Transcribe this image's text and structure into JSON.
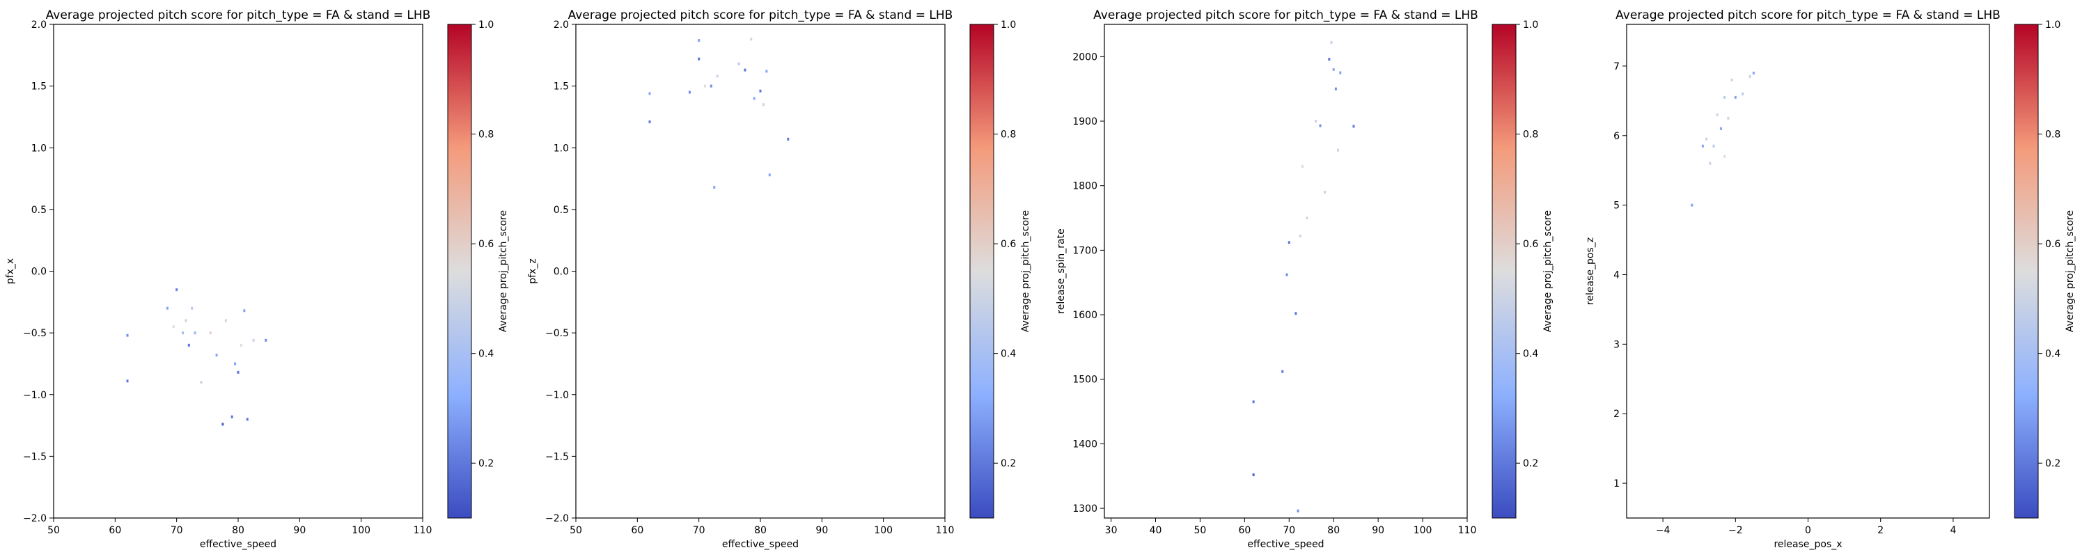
{
  "chart_data": [
    {
      "type": "heatmap",
      "title": "Average projected pitch score for pitch_type = FA & stand = LHB",
      "xlabel": "effective_speed",
      "ylabel": "pfx_x",
      "xlim": [
        50,
        110
      ],
      "ylim": [
        -2.0,
        2.0
      ],
      "xticks": [
        50,
        60,
        70,
        80,
        90,
        100,
        110
      ],
      "yticks": [
        -2.0,
        -1.5,
        -1.0,
        -0.5,
        0.0,
        0.5,
        1.0,
        1.5,
        2.0
      ],
      "xtick_labels": [
        "50",
        "60",
        "70",
        "80",
        "90",
        "100",
        "110"
      ],
      "ytick_labels": [
        "−2.0",
        "−1.5",
        "−1.0",
        "−0.5",
        "0.0",
        "0.5",
        "1.0",
        "1.5",
        "2.0"
      ],
      "colorbar": {
        "label": "Average proj_pitch_score",
        "colormap": "coolwarm",
        "range": [
          0.1,
          1.0
        ],
        "ticks": [
          0.2,
          0.4,
          0.6,
          0.8,
          1.0
        ],
        "tick_labels": [
          "0.2",
          "0.4",
          "0.6",
          "0.8",
          "1.0"
        ]
      },
      "grid": false,
      "points": [
        {
          "x": 62.0,
          "y": -0.52,
          "v": 0.25
        },
        {
          "x": 62.0,
          "y": -0.89,
          "v": 0.2
        },
        {
          "x": 68.5,
          "y": -0.3,
          "v": 0.3
        },
        {
          "x": 69.5,
          "y": -0.45,
          "v": 0.55
        },
        {
          "x": 70.0,
          "y": -0.15,
          "v": 0.22
        },
        {
          "x": 71.0,
          "y": -0.5,
          "v": 0.4
        },
        {
          "x": 71.5,
          "y": -0.4,
          "v": 0.5
        },
        {
          "x": 72.0,
          "y": -0.6,
          "v": 0.2
        },
        {
          "x": 72.5,
          "y": -0.3,
          "v": 0.45
        },
        {
          "x": 73.0,
          "y": -0.5,
          "v": 0.35
        },
        {
          "x": 74.0,
          "y": -0.9,
          "v": 0.5
        },
        {
          "x": 75.5,
          "y": -0.5,
          "v": 0.6
        },
        {
          "x": 76.5,
          "y": -0.68,
          "v": 0.3
        },
        {
          "x": 77.5,
          "y": -1.24,
          "v": 0.15
        },
        {
          "x": 78.0,
          "y": -0.4,
          "v": 0.5
        },
        {
          "x": 79.0,
          "y": -1.18,
          "v": 0.2
        },
        {
          "x": 79.5,
          "y": -0.75,
          "v": 0.3
        },
        {
          "x": 80.0,
          "y": -0.82,
          "v": 0.2
        },
        {
          "x": 80.5,
          "y": -0.6,
          "v": 0.55
        },
        {
          "x": 81.0,
          "y": -0.32,
          "v": 0.3
        },
        {
          "x": 81.5,
          "y": -1.2,
          "v": 0.2
        },
        {
          "x": 82.5,
          "y": -0.56,
          "v": 0.5
        },
        {
          "x": 84.5,
          "y": -0.56,
          "v": 0.25
        }
      ]
    },
    {
      "type": "heatmap",
      "title": "Average projected pitch score for pitch_type = FA & stand = LHB",
      "xlabel": "effective_speed",
      "ylabel": "pfx_z",
      "xlim": [
        50,
        110
      ],
      "ylim": [
        -2.0,
        2.0
      ],
      "xticks": [
        50,
        60,
        70,
        80,
        90,
        100,
        110
      ],
      "yticks": [
        -2.0,
        -1.5,
        -1.0,
        -0.5,
        0.0,
        0.5,
        1.0,
        1.5,
        2.0
      ],
      "xtick_labels": [
        "50",
        "60",
        "70",
        "80",
        "90",
        "100",
        "110"
      ],
      "ytick_labels": [
        "−2.0",
        "−1.5",
        "−1.0",
        "−0.5",
        "0.0",
        "0.5",
        "1.0",
        "1.5",
        "2.0"
      ],
      "colorbar": {
        "label": "Average proj_pitch_score",
        "colormap": "coolwarm",
        "range": [
          0.1,
          1.0
        ],
        "ticks": [
          0.2,
          0.4,
          0.6,
          0.8,
          1.0
        ],
        "tick_labels": [
          "0.2",
          "0.4",
          "0.6",
          "0.8",
          "1.0"
        ]
      },
      "grid": false,
      "points": [
        {
          "x": 62.0,
          "y": 1.44,
          "v": 0.3
        },
        {
          "x": 62.0,
          "y": 1.21,
          "v": 0.2
        },
        {
          "x": 68.5,
          "y": 1.45,
          "v": 0.25
        },
        {
          "x": 70.0,
          "y": 1.87,
          "v": 0.3
        },
        {
          "x": 70.0,
          "y": 1.72,
          "v": 0.2
        },
        {
          "x": 71.0,
          "y": 1.5,
          "v": 0.55
        },
        {
          "x": 72.0,
          "y": 1.5,
          "v": 0.25
        },
        {
          "x": 72.5,
          "y": 0.68,
          "v": 0.3
        },
        {
          "x": 73.0,
          "y": 1.58,
          "v": 0.5
        },
        {
          "x": 76.5,
          "y": 1.68,
          "v": 0.45
        },
        {
          "x": 77.5,
          "y": 1.63,
          "v": 0.2
        },
        {
          "x": 78.5,
          "y": 1.88,
          "v": 0.5
        },
        {
          "x": 79.0,
          "y": 1.4,
          "v": 0.3
        },
        {
          "x": 80.0,
          "y": 1.46,
          "v": 0.2
        },
        {
          "x": 80.5,
          "y": 1.35,
          "v": 0.5
        },
        {
          "x": 81.0,
          "y": 1.62,
          "v": 0.3
        },
        {
          "x": 81.5,
          "y": 0.78,
          "v": 0.3
        },
        {
          "x": 84.5,
          "y": 1.07,
          "v": 0.2
        }
      ]
    },
    {
      "type": "heatmap",
      "title": "Average projected pitch score for pitch_type = FA & stand = LHB",
      "xlabel": "effective_speed",
      "ylabel": "release_spin_rate",
      "xlim": [
        28.5,
        110
      ],
      "ylim": [
        1285,
        2050
      ],
      "xticks": [
        30,
        40,
        50,
        60,
        70,
        80,
        90,
        100,
        110
      ],
      "yticks": [
        1300,
        1400,
        1500,
        1600,
        1700,
        1800,
        1900,
        2000
      ],
      "xtick_labels": [
        "30",
        "40",
        "50",
        "60",
        "70",
        "80",
        "90",
        "100",
        "110"
      ],
      "ytick_labels": [
        "1300",
        "1400",
        "1500",
        "1600",
        "1700",
        "1800",
        "1900",
        "2000"
      ],
      "colorbar": {
        "label": "Average proj_pitch_score",
        "colormap": "coolwarm",
        "range": [
          0.1,
          1.0
        ],
        "ticks": [
          0.2,
          0.4,
          0.6,
          0.8,
          1.0
        ],
        "tick_labels": [
          "0.2",
          "0.4",
          "0.6",
          "0.8",
          "1.0"
        ]
      },
      "grid": false,
      "points": [
        {
          "x": 62.0,
          "y": 1352,
          "v": 0.15
        },
        {
          "x": 62.0,
          "y": 1465,
          "v": 0.2
        },
        {
          "x": 68.5,
          "y": 1512,
          "v": 0.2
        },
        {
          "x": 69.5,
          "y": 1662,
          "v": 0.25
        },
        {
          "x": 70.0,
          "y": 1712,
          "v": 0.2
        },
        {
          "x": 71.5,
          "y": 1602,
          "v": 0.2
        },
        {
          "x": 72.0,
          "y": 1296,
          "v": 0.25
        },
        {
          "x": 72.5,
          "y": 1722,
          "v": 0.5
        },
        {
          "x": 73.0,
          "y": 1830,
          "v": 0.55
        },
        {
          "x": 74.0,
          "y": 1750,
          "v": 0.5
        },
        {
          "x": 76.0,
          "y": 1900,
          "v": 0.5
        },
        {
          "x": 77.0,
          "y": 1893,
          "v": 0.25
        },
        {
          "x": 78.0,
          "y": 1790,
          "v": 0.5
        },
        {
          "x": 79.0,
          "y": 1996,
          "v": 0.2
        },
        {
          "x": 79.5,
          "y": 2022,
          "v": 0.5
        },
        {
          "x": 80.0,
          "y": 1980,
          "v": 0.3
        },
        {
          "x": 80.5,
          "y": 1950,
          "v": 0.25
        },
        {
          "x": 81.5,
          "y": 1975,
          "v": 0.3
        },
        {
          "x": 81.0,
          "y": 1855,
          "v": 0.5
        },
        {
          "x": 84.5,
          "y": 1892,
          "v": 0.2
        }
      ]
    },
    {
      "type": "heatmap",
      "title": "Average projected pitch score for pitch_type = FA & stand = LHB",
      "xlabel": "release_pos_x",
      "ylabel": "release_pos_z",
      "xlim": [
        -5,
        5
      ],
      "ylim": [
        0.5,
        7.6
      ],
      "xticks": [
        -4,
        -2,
        0,
        2,
        4
      ],
      "yticks": [
        1,
        2,
        3,
        4,
        5,
        6,
        7
      ],
      "xtick_labels": [
        "−4",
        "−2",
        "0",
        "2",
        "4"
      ],
      "ytick_labels": [
        "1",
        "2",
        "3",
        "4",
        "5",
        "6",
        "7"
      ],
      "colorbar": {
        "label": "Average proj_pitch_score",
        "colormap": "coolwarm",
        "range": [
          0.1,
          1.0
        ],
        "ticks": [
          0.2,
          0.4,
          0.6,
          0.8,
          1.0
        ],
        "tick_labels": [
          "0.2",
          "0.4",
          "0.6",
          "0.8",
          "1.0"
        ]
      },
      "grid": false,
      "points": [
        {
          "x": -3.2,
          "y": 5.0,
          "v": 0.3
        },
        {
          "x": -2.9,
          "y": 5.85,
          "v": 0.3
        },
        {
          "x": -2.8,
          "y": 5.95,
          "v": 0.5
        },
        {
          "x": -2.7,
          "y": 5.6,
          "v": 0.5
        },
        {
          "x": -2.6,
          "y": 5.85,
          "v": 0.45
        },
        {
          "x": -2.5,
          "y": 6.3,
          "v": 0.5
        },
        {
          "x": -2.4,
          "y": 6.1,
          "v": 0.3
        },
        {
          "x": -2.3,
          "y": 6.55,
          "v": 0.45
        },
        {
          "x": -2.2,
          "y": 6.25,
          "v": 0.5
        },
        {
          "x": -2.1,
          "y": 6.8,
          "v": 0.5
        },
        {
          "x": -2.0,
          "y": 6.55,
          "v": 0.3
        },
        {
          "x": -1.8,
          "y": 6.6,
          "v": 0.45
        },
        {
          "x": -1.6,
          "y": 6.85,
          "v": 0.5
        },
        {
          "x": -1.5,
          "y": 6.9,
          "v": 0.3
        },
        {
          "x": -2.3,
          "y": 5.7,
          "v": 0.55
        }
      ]
    }
  ]
}
